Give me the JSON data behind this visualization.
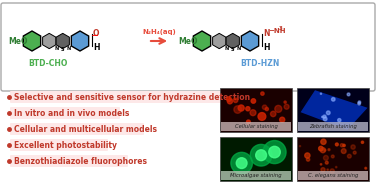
{
  "bg_color": "#ffffff",
  "border_color": "#aaaaaa",
  "bullet_color": "#c0392b",
  "bullet_bg": "#fde8e8",
  "bullet_text_color": "#c0392b",
  "bullet_points": [
    "Selective and sensitive sensor for hydrazine detection",
    "In vitro and in vivo models",
    "Cellular and multicellular models",
    "Excellent photostability",
    "Benzothiadiazole fluorophores"
  ],
  "reaction_arrow_color": "#e74c3c",
  "reaction_arrow_text": "N₂H₄(aq)",
  "green_hex_color": "#4caf50",
  "blue_hex_color": "#5b9bd5",
  "gray_color1": "#9e9e9e",
  "gray_color2": "#757575",
  "btd_cho_label": "BTD-CHO",
  "btd_hzn_label": "BTD-HZN",
  "meo_color": "#2e7d32",
  "image_labels": [
    "Cellular staining",
    "Zebrafish staining",
    "Microalgae staining",
    "C. elegans staining"
  ],
  "img_bg_colors": [
    "#1a0000",
    "#00001a",
    "#001a00",
    "#1a0000"
  ],
  "label_bg_colors": [
    "#c8b4b4",
    "#b4b4c8",
    "#b4c8b4",
    "#c8b4b4"
  ]
}
